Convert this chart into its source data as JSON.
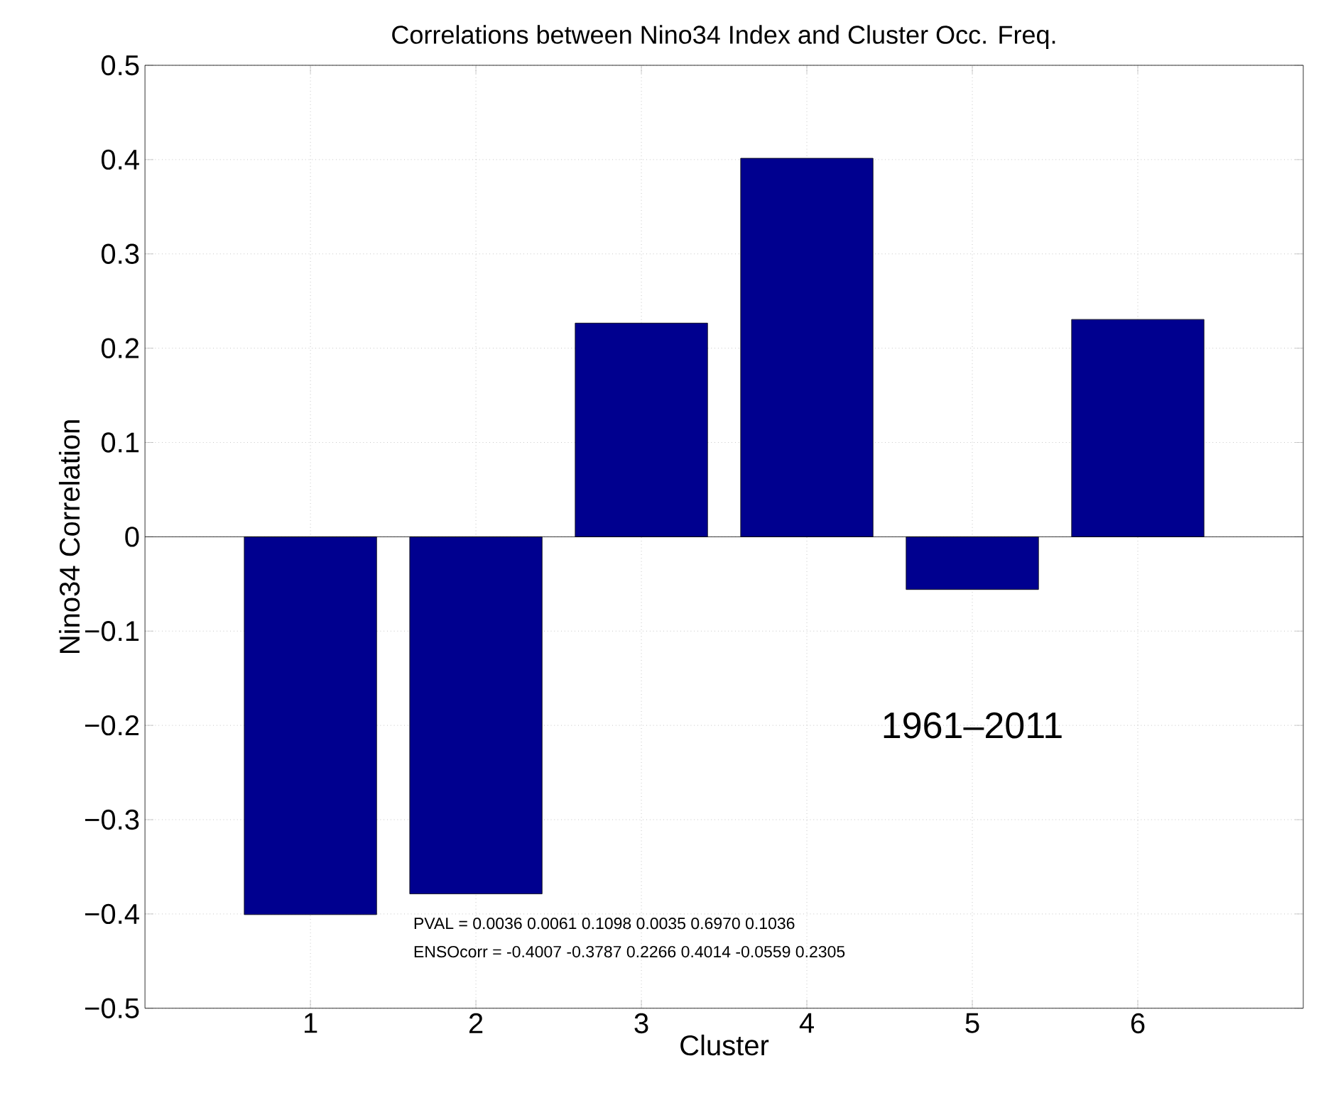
{
  "chart_data": {
    "type": "bar",
    "title": "Correlations between Nino34 Index and Cluster Occ. Freq.",
    "xlabel": "Cluster",
    "ylabel": "Nino34 Correlation",
    "x": [
      1,
      2,
      3,
      4,
      5,
      6
    ],
    "values": [
      -0.4007,
      -0.3787,
      0.2266,
      0.4014,
      -0.0559,
      0.2305
    ],
    "color": "#00008f",
    "xlim": [
      0,
      7
    ],
    "xticks": [
      1,
      2,
      3,
      4,
      5,
      6
    ],
    "ylim": [
      -0.5,
      0.5
    ],
    "yticks": [
      {
        "value": -0.5,
        "label": "−0.5"
      },
      {
        "value": -0.4,
        "label": "−0.4"
      },
      {
        "value": -0.3,
        "label": "−0.3"
      },
      {
        "value": -0.2,
        "label": "−0.2"
      },
      {
        "value": -0.1,
        "label": "−0.1"
      },
      0,
      0.1,
      0.2,
      0.3,
      0.4,
      0.5
    ],
    "grid": true,
    "annotations": [
      "1961–2011",
      "PVAL =  0.0036    0.0061    0.1098    0.0035    0.6970    0.1036",
      "ENSOcorr =  -0.4007   -0.3787    0.2266    0.4014   -0.0559    0.2305"
    ]
  }
}
